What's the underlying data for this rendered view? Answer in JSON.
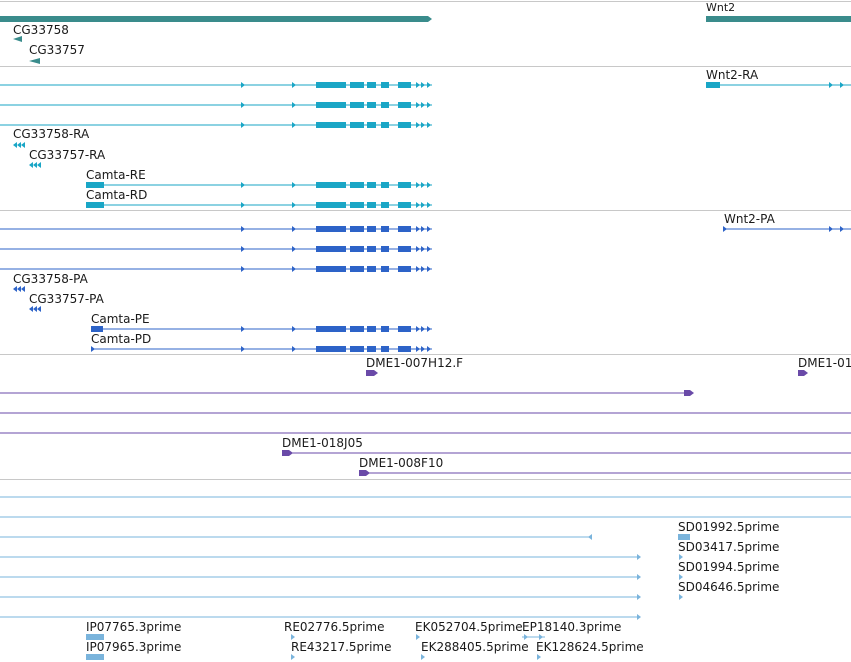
{
  "colors": {
    "gene": "#3a8c8c",
    "mrna_cyan": "#1aa6c6",
    "protein_blue": "#2d63c8",
    "clone_purple": "#6a4aa8",
    "est_light": "#7ab4dc",
    "divider": "#c8c8c8"
  },
  "tracks": {
    "gene": {
      "labels": [
        "Wnt2",
        "CG33758",
        "CG33757"
      ]
    },
    "transcript": {
      "labels": [
        "Wnt2-RA",
        "CG33758-RA",
        "CG33757-RA",
        "Camta-RE",
        "Camta-RD"
      ]
    },
    "protein": {
      "labels": [
        "Wnt2-PA",
        "CG33758-PA",
        "CG33757-PA",
        "Camta-PE",
        "Camta-PD"
      ]
    },
    "clone": {
      "labels": [
        "DME1-007H12.F",
        "DME1-01",
        "DME1-018J05",
        "DME1-008F10"
      ]
    },
    "est": {
      "labels": [
        "SD01992.5prime",
        "SD03417.5prime",
        "SD01994.5prime",
        "SD04646.5prime",
        "IP07765.3prime",
        "RE02776.5prime",
        "EK052704.5prime",
        "EP18140.3prime",
        "IP07965.3prime",
        "RE43217.5prime",
        "EK288405.5prime",
        "EK128624.5prime"
      ]
    }
  }
}
